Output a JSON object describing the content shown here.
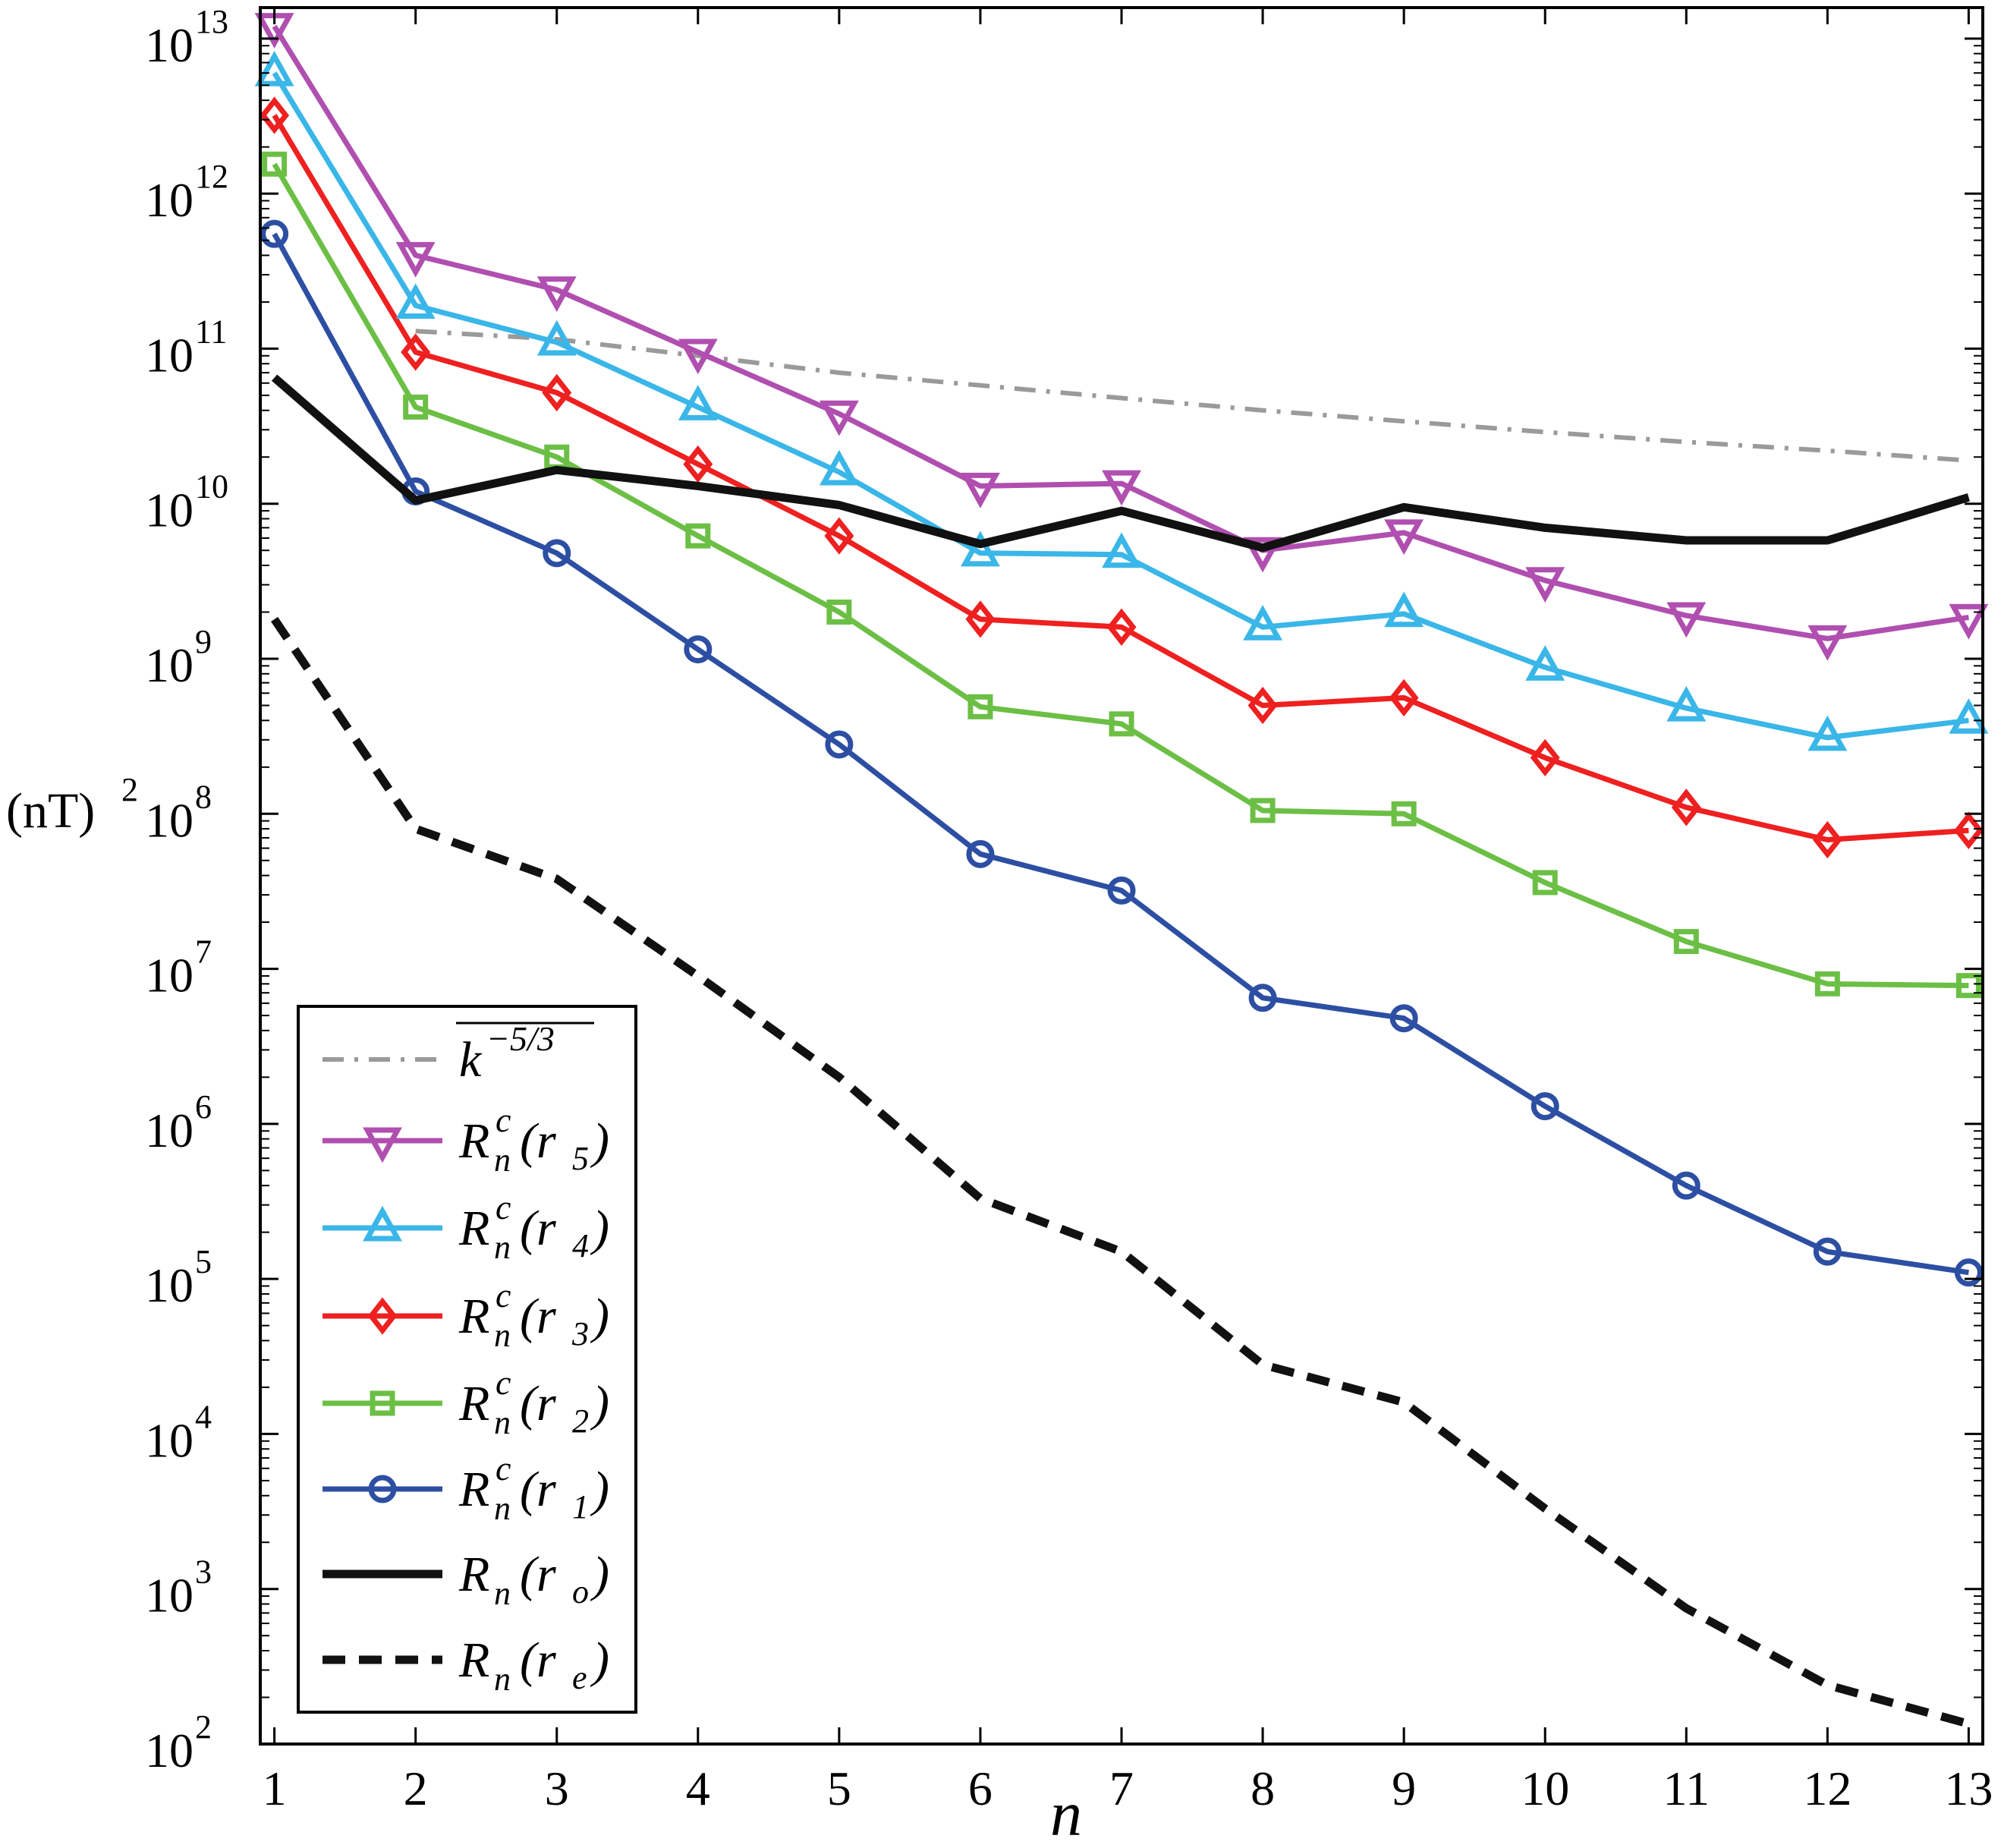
{
  "chart_data": {
    "type": "line",
    "scale": "log-y",
    "xlabel": "n",
    "ylabel_base": "(nT)",
    "ylabel_exp": "2",
    "x": [
      1,
      2,
      3,
      4,
      5,
      6,
      7,
      8,
      9,
      10,
      11,
      12,
      13
    ],
    "xlim": [
      0.9,
      13.1
    ],
    "ylim_exp": [
      2,
      13.2
    ],
    "xticks": [
      "1",
      "2",
      "3",
      "4",
      "5",
      "6",
      "7",
      "8",
      "9",
      "10",
      "11",
      "12",
      "13"
    ],
    "yticks": [
      {
        "base": "10",
        "exp": "2",
        "value": 2
      },
      {
        "base": "10",
        "exp": "3",
        "value": 3
      },
      {
        "base": "10",
        "exp": "4",
        "value": 4
      },
      {
        "base": "10",
        "exp": "5",
        "value": 5
      },
      {
        "base": "10",
        "exp": "6",
        "value": 6
      },
      {
        "base": "10",
        "exp": "7",
        "value": 7
      },
      {
        "base": "10",
        "exp": "8",
        "value": 8
      },
      {
        "base": "10",
        "exp": "9",
        "value": 9
      },
      {
        "base": "10",
        "exp": "10",
        "value": 10
      },
      {
        "base": "10",
        "exp": "11",
        "value": 11
      },
      {
        "base": "10",
        "exp": "12",
        "value": 12
      },
      {
        "base": "10",
        "exp": "13",
        "value": 13
      }
    ],
    "series": [
      {
        "id": "kolmogorov",
        "label_base": "k",
        "label_sup": "−5/3",
        "overline": true,
        "color": "#9a9a9a",
        "dash": "dashdot",
        "marker": "none",
        "x": [
          2,
          3,
          4,
          5,
          6,
          7,
          8,
          9,
          10,
          11,
          12,
          13
        ],
        "values": [
          130000000000.0,
          115000000000.0,
          90000000000.0,
          70000000000.0,
          58000000000.0,
          48000000000.0,
          40000000000.0,
          34000000000.0,
          29000000000.0,
          25000000000.0,
          22000000000.0,
          19000000000.0
        ]
      },
      {
        "id": "r5",
        "label_base": "R",
        "label_sup": "c",
        "label_sub": "n",
        "label_arg": "(r",
        "label_arg_sub": "5",
        "label_close": ")",
        "color": "#b04fb0",
        "marker": "triangle-down",
        "x": [
          1,
          2,
          3,
          4,
          5,
          6,
          7,
          8,
          9,
          10,
          11,
          12,
          13
        ],
        "values": [
          12000000000000.0,
          400000000000.0,
          240000000000.0,
          95000000000.0,
          38000000000.0,
          13000000000.0,
          13500000000.0,
          5000000000.0,
          6500000000.0,
          3200000000.0,
          1900000000.0,
          1350000000.0,
          1850000000.0
        ]
      },
      {
        "id": "r4",
        "label_base": "R",
        "label_sup": "c",
        "label_sub": "n",
        "label_arg": "(r",
        "label_arg_sub": "4",
        "label_close": ")",
        "color": "#3ab6e8",
        "marker": "triangle-up",
        "x": [
          1,
          2,
          3,
          4,
          5,
          6,
          7,
          8,
          9,
          10,
          11,
          12,
          13
        ],
        "values": [
          6000000000000.0,
          190000000000.0,
          110000000000.0,
          42000000000.0,
          16000000000.0,
          4800000000.0,
          4700000000.0,
          1600000000.0,
          1950000000.0,
          880000000.0,
          480000000.0,
          310000000.0,
          400000000.0
        ]
      },
      {
        "id": "r3",
        "label_base": "R",
        "label_sup": "c",
        "label_sub": "n",
        "label_arg": "(r",
        "label_arg_sub": "3",
        "label_close": ")",
        "color": "#ee2020",
        "marker": "diamond",
        "x": [
          1,
          2,
          3,
          4,
          5,
          6,
          7,
          8,
          9,
          10,
          11,
          12,
          13
        ],
        "values": [
          3200000000000.0,
          95000000000.0,
          52000000000.0,
          18000000000.0,
          6200000000.0,
          1800000000.0,
          1600000000.0,
          500000000.0,
          560000000.0,
          230000000.0,
          110000000.0,
          68000000.0,
          78000000.0
        ]
      },
      {
        "id": "r2",
        "label_base": "R",
        "label_sup": "c",
        "label_sub": "n",
        "label_arg": "(r",
        "label_arg_sub": "2",
        "label_close": ")",
        "color": "#6cbf45",
        "marker": "square",
        "x": [
          1,
          2,
          3,
          4,
          5,
          6,
          7,
          8,
          9,
          10,
          11,
          12,
          13
        ],
        "values": [
          1550000000000.0,
          42000000000.0,
          20000000000.0,
          6200000000.0,
          2000000000.0,
          490000000.0,
          380000000.0,
          105000000.0,
          100000000.0,
          36000000.0,
          15000000.0,
          8000000.0,
          7800000.0
        ]
      },
      {
        "id": "r1",
        "label_base": "R",
        "label_sup": "c",
        "label_sub": "n",
        "label_arg": "(r",
        "label_arg_sub": "1",
        "label_close": ")",
        "color": "#2d4fa3",
        "marker": "circle",
        "x": [
          1,
          2,
          3,
          4,
          5,
          6,
          7,
          8,
          9,
          10,
          11,
          12,
          13
        ],
        "values": [
          550000000000.0,
          12000000000.0,
          4800000000.0,
          1150000000.0,
          280000000.0,
          55000000.0,
          32000000.0,
          6500000.0,
          4800000.0,
          1300000.0,
          400000.0,
          150000.0,
          110000.0
        ]
      },
      {
        "id": "ro",
        "label_base": "R",
        "label_sub": "n",
        "label_arg": "(r",
        "label_arg_sub": "o",
        "label_close": ")",
        "color": "#111111",
        "marker": "none",
        "width": 11,
        "x": [
          1,
          2,
          3,
          4,
          5,
          6,
          7,
          8,
          9,
          10,
          11,
          12,
          13
        ],
        "values": [
          65000000000.0,
          10500000000.0,
          16500000000.0,
          13000000000.0,
          9800000000.0,
          5500000000.0,
          9000000000.0,
          5200000000.0,
          9500000000.0,
          7000000000.0,
          5800000000.0,
          5800000000.0,
          11000000000.0
        ]
      },
      {
        "id": "re",
        "label_base": "R",
        "label_sub": "n",
        "label_arg": "(r",
        "label_arg_sub": "e",
        "label_close": ")",
        "color": "#111111",
        "dash": "dashed",
        "marker": "none",
        "width": 11,
        "x": [
          1,
          2,
          3,
          4,
          5,
          6,
          7,
          8,
          9,
          10,
          11,
          12,
          13
        ],
        "values": [
          1800000000.0,
          80000000.0,
          38000000.0,
          9000000.0,
          2000000.0,
          330000.0,
          150000.0,
          28000.0,
          16000.0,
          3300.0,
          750.0,
          240.0,
          135.0
        ]
      }
    ],
    "legend": "bottom-left"
  }
}
